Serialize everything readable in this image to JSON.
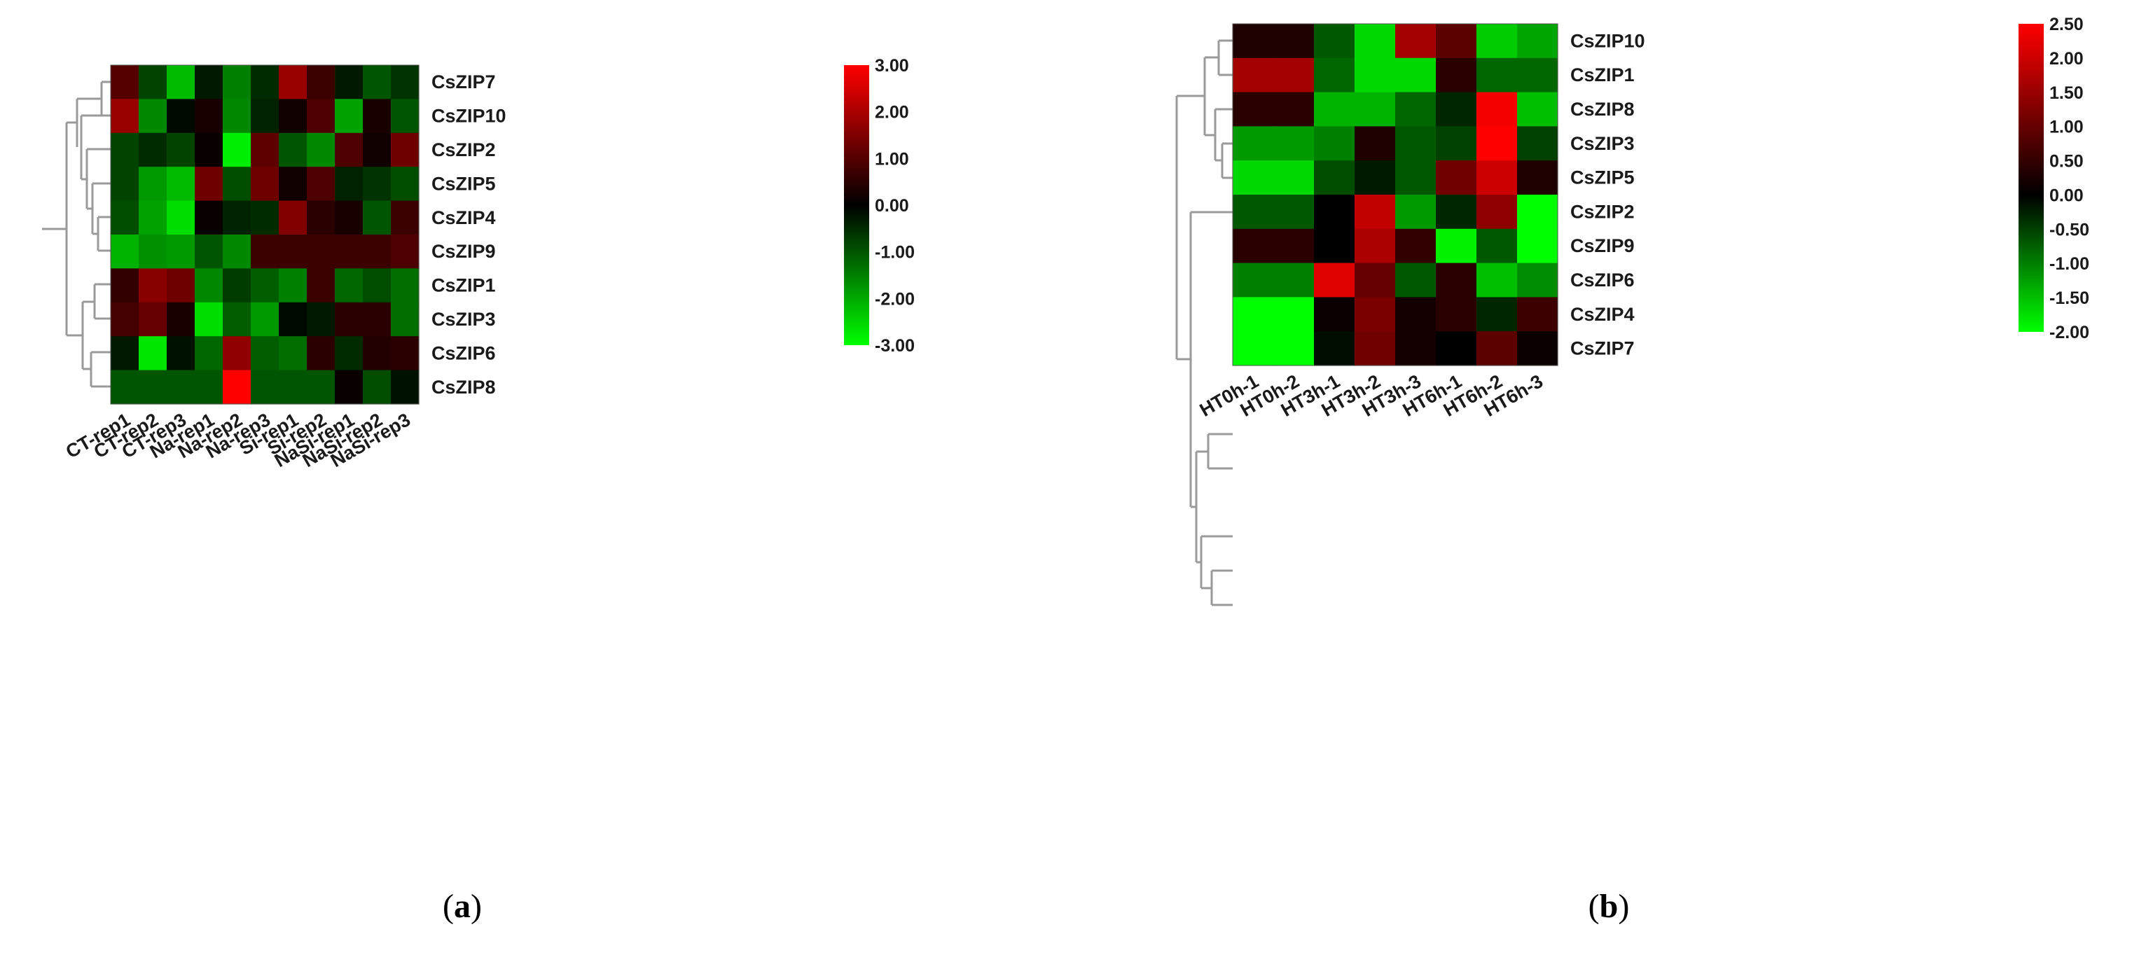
{
  "chart_data": [
    {
      "type": "heatmap",
      "panel_label": "(a)",
      "panel_letter": "a",
      "rows": [
        "CsZIP7",
        "CsZIP10",
        "CsZIP2",
        "CsZIP5",
        "CsZIP4",
        "CsZIP9",
        "CsZIP1",
        "CsZIP3",
        "CsZIP6",
        "CsZIP8"
      ],
      "columns": [
        "CT-rep1",
        "CT-rep2",
        "CT-rep3",
        "Na-rep1",
        "Na-rep2",
        "Na-rep3",
        "Si-rep1",
        "Si-rep2",
        "NaSi-rep1",
        "NaSi-rep2",
        "NaSi-rep3"
      ],
      "values": [
        [
          1.0,
          -0.8,
          -2.2,
          -0.3,
          -1.5,
          -0.5,
          1.8,
          0.7,
          -0.3,
          -1.0,
          -0.6
        ],
        [
          1.8,
          -1.6,
          -0.1,
          0.3,
          -1.6,
          -0.4,
          0.2,
          0.9,
          -1.9,
          0.3,
          -1.0
        ],
        [
          -0.8,
          -0.5,
          -0.8,
          0.1,
          -2.8,
          1.1,
          -1.0,
          -1.6,
          0.9,
          0.2,
          1.3
        ],
        [
          -0.8,
          -1.8,
          -2.2,
          1.3,
          -0.9,
          1.3,
          0.2,
          0.9,
          -0.4,
          -0.6,
          -0.9
        ],
        [
          -0.9,
          -1.9,
          -2.6,
          0.1,
          -0.4,
          -0.5,
          1.5,
          0.5,
          0.3,
          -1.0,
          0.7
        ],
        [
          -2.1,
          -1.7,
          -1.8,
          -1.0,
          -1.6,
          0.7,
          0.7,
          0.7,
          0.7,
          0.7,
          0.9
        ],
        [
          0.6,
          1.6,
          1.3,
          -1.6,
          -0.7,
          -1.1,
          -1.5,
          0.7,
          -1.2,
          -0.9,
          -1.3
        ],
        [
          0.8,
          1.2,
          0.3,
          -2.6,
          -1.1,
          -1.8,
          -0.1,
          -0.3,
          0.5,
          0.5,
          -1.3
        ],
        [
          -0.3,
          -2.7,
          -0.2,
          -1.2,
          1.7,
          -1.1,
          -1.3,
          0.5,
          -0.5,
          0.4,
          0.5
        ],
        [
          -1.0,
          -1.0,
          -1.0,
          -1.0,
          3.0,
          -1.0,
          -1.0,
          -1.0,
          0.1,
          -0.9,
          -0.2
        ]
      ],
      "colorbar": {
        "min": -3.0,
        "max": 3.0,
        "low_color": "#00ff00",
        "mid_color": "#000000",
        "high_color": "#ff0000",
        "ticks": [
          "3.00",
          "2.00",
          "1.00",
          "0.00",
          "-1.00",
          "-2.00",
          "-3.00"
        ]
      }
    },
    {
      "type": "heatmap",
      "panel_label": "(b)",
      "panel_letter": "b",
      "rows": [
        "CsZIP10",
        "CsZIP1",
        "CsZIP8",
        "CsZIP3",
        "CsZIP5",
        "CsZIP2",
        "CsZIP9",
        "CsZIP6",
        "CsZIP4",
        "CsZIP7"
      ],
      "columns": [
        "HT0h-1",
        "HT0h-2",
        "HT3h-1",
        "HT3h-2",
        "HT3h-3",
        "HT6h-1",
        "HT6h-2",
        "HT6h-3"
      ],
      "values": [
        [
          0.3,
          0.3,
          -0.7,
          -1.7,
          1.6,
          0.9,
          -1.6,
          -1.3
        ],
        [
          1.6,
          1.6,
          -0.8,
          -1.7,
          -1.7,
          0.4,
          -0.8,
          -0.8
        ],
        [
          0.4,
          0.4,
          -1.4,
          -1.4,
          -0.8,
          -0.3,
          2.4,
          -1.5
        ],
        [
          -1.2,
          -1.2,
          -1.0,
          0.3,
          -0.7,
          -0.5,
          2.5,
          -0.5
        ],
        [
          -1.7,
          -1.7,
          -0.6,
          -0.2,
          -0.7,
          1.1,
          2.0,
          0.3
        ],
        [
          -0.7,
          -0.7,
          0.0,
          1.9,
          -1.2,
          -0.3,
          1.4,
          -2.0
        ],
        [
          0.4,
          0.4,
          0.0,
          1.7,
          0.5,
          -1.9,
          -0.7,
          -2.0
        ],
        [
          -1.0,
          -1.0,
          2.2,
          1.0,
          -0.7,
          0.4,
          -1.5,
          -1.1
        ],
        [
          -2.0,
          -2.0,
          0.1,
          1.2,
          0.2,
          0.4,
          -0.3,
          0.6
        ],
        [
          -2.0,
          -2.0,
          -0.1,
          1.1,
          0.2,
          0.0,
          0.9,
          0.1
        ]
      ],
      "colorbar": {
        "min": -2.0,
        "max": 2.5,
        "low_color": "#00ff00",
        "mid_color": "#000000",
        "high_color": "#ff0000",
        "ticks": [
          "2.50",
          "2.00",
          "1.50",
          "1.00",
          "0.50",
          "0.00",
          "-0.50",
          "-1.00",
          "-1.50",
          "-2.00"
        ]
      }
    }
  ]
}
